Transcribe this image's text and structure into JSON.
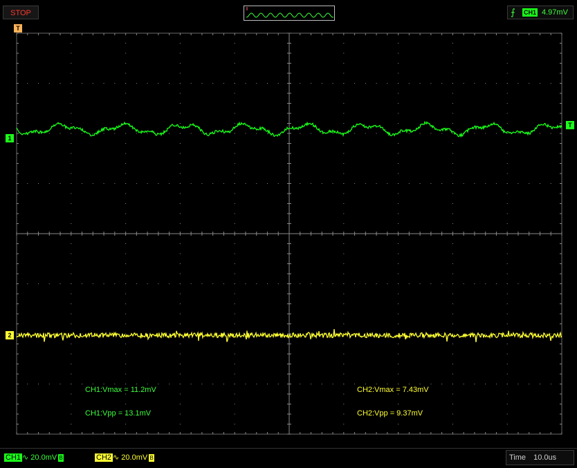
{
  "toolbar": {
    "stop_label": "STOP",
    "trigger_source": "CH1",
    "trigger_level": "4.97mV",
    "trigger_edge_icon": "rising-edge-icon",
    "trigger_position_marker": "T"
  },
  "markers": {
    "ch1": "1",
    "ch2": "2",
    "trigger_level": "T"
  },
  "measurements": {
    "ch1_vmax": "CH1:Vmax = 11.2mV",
    "ch1_vpp": "CH1:Vpp = 13.1mV",
    "ch2_vmax": "CH2:Vmax = 7.43mV",
    "ch2_vpp": "CH2:Vpp = 9.37mV"
  },
  "status": {
    "ch1_name": "CH1",
    "ch1_coupling": "∿",
    "ch1_scale": "20.0mV",
    "ch1_bw": "B",
    "ch2_name": "CH2",
    "ch2_coupling": "∿",
    "ch2_scale": "20.0mV",
    "ch2_bw": "B",
    "time_label": "Time",
    "time_value": "10.0us"
  },
  "colors": {
    "ch1": "#1aff1a",
    "ch2": "#ffff33",
    "grid": "#6a6a6a",
    "background": "#000000"
  }
}
